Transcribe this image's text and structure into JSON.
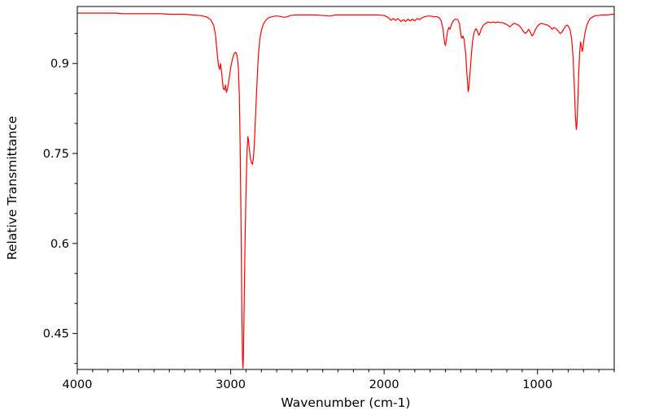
{
  "chart_data": {
    "type": "line",
    "title": "",
    "xlabel": "Wavenumber (cm-1)",
    "ylabel": "Relative Transmittance",
    "xlim": [
      4000,
      500
    ],
    "x_axis_reversed": true,
    "ylim": [
      0.39,
      0.995
    ],
    "x_ticks": [
      4000,
      3000,
      2000,
      1000
    ],
    "x_tick_labels": [
      "4000",
      "3000",
      "2000",
      "1000"
    ],
    "x_minor_tick_step": 100,
    "y_ticks": [
      0.45,
      0.6,
      0.75,
      0.9
    ],
    "y_tick_labels": [
      "0.45",
      "0.6",
      "0.75",
      "0.9"
    ],
    "y_minor_tick_step": 0.05,
    "grid": false,
    "legend": "none",
    "line_color": "#ff0000",
    "background_color": "#ffffff",
    "axis_color": "#000000",
    "series": [
      {
        "name": "IR spectrum",
        "points": [
          [
            4000,
            0.984
          ],
          [
            3950,
            0.984
          ],
          [
            3900,
            0.984
          ],
          [
            3850,
            0.984
          ],
          [
            3800,
            0.984
          ],
          [
            3750,
            0.984
          ],
          [
            3700,
            0.983
          ],
          [
            3650,
            0.983
          ],
          [
            3600,
            0.983
          ],
          [
            3550,
            0.983
          ],
          [
            3500,
            0.983
          ],
          [
            3450,
            0.983
          ],
          [
            3400,
            0.982
          ],
          [
            3350,
            0.982
          ],
          [
            3300,
            0.982
          ],
          [
            3250,
            0.981
          ],
          [
            3200,
            0.98
          ],
          [
            3160,
            0.978
          ],
          [
            3130,
            0.973
          ],
          [
            3110,
            0.963
          ],
          [
            3098,
            0.946
          ],
          [
            3088,
            0.917
          ],
          [
            3080,
            0.897
          ],
          [
            3072,
            0.89
          ],
          [
            3066,
            0.9
          ],
          [
            3058,
            0.882
          ],
          [
            3048,
            0.858
          ],
          [
            3040,
            0.856
          ],
          [
            3034,
            0.864
          ],
          [
            3028,
            0.852
          ],
          [
            3022,
            0.856
          ],
          [
            3014,
            0.868
          ],
          [
            3006,
            0.882
          ],
          [
            2998,
            0.896
          ],
          [
            2988,
            0.908
          ],
          [
            2978,
            0.916
          ],
          [
            2968,
            0.919
          ],
          [
            2958,
            0.913
          ],
          [
            2950,
            0.893
          ],
          [
            2944,
            0.85
          ],
          [
            2938,
            0.76
          ],
          [
            2932,
            0.62
          ],
          [
            2927,
            0.48
          ],
          [
            2923,
            0.41
          ],
          [
            2920,
            0.392
          ],
          [
            2917,
            0.412
          ],
          [
            2912,
            0.5
          ],
          [
            2906,
            0.61
          ],
          [
            2899,
            0.7
          ],
          [
            2893,
            0.755
          ],
          [
            2888,
            0.778
          ],
          [
            2884,
            0.772
          ],
          [
            2878,
            0.756
          ],
          [
            2871,
            0.742
          ],
          [
            2864,
            0.734
          ],
          [
            2858,
            0.732
          ],
          [
            2852,
            0.742
          ],
          [
            2846,
            0.765
          ],
          [
            2840,
            0.8
          ],
          [
            2832,
            0.848
          ],
          [
            2824,
            0.893
          ],
          [
            2816,
            0.925
          ],
          [
            2808,
            0.944
          ],
          [
            2798,
            0.957
          ],
          [
            2788,
            0.965
          ],
          [
            2775,
            0.971
          ],
          [
            2760,
            0.975
          ],
          [
            2745,
            0.977
          ],
          [
            2730,
            0.978
          ],
          [
            2710,
            0.979
          ],
          [
            2690,
            0.979
          ],
          [
            2670,
            0.978
          ],
          [
            2650,
            0.977
          ],
          [
            2630,
            0.978
          ],
          [
            2610,
            0.98
          ],
          [
            2580,
            0.981
          ],
          [
            2550,
            0.981
          ],
          [
            2500,
            0.981
          ],
          [
            2450,
            0.981
          ],
          [
            2400,
            0.98
          ],
          [
            2350,
            0.979
          ],
          [
            2320,
            0.981
          ],
          [
            2280,
            0.981
          ],
          [
            2240,
            0.981
          ],
          [
            2200,
            0.981
          ],
          [
            2160,
            0.981
          ],
          [
            2120,
            0.981
          ],
          [
            2080,
            0.981
          ],
          [
            2040,
            0.981
          ],
          [
            2000,
            0.98
          ],
          [
            1975,
            0.977
          ],
          [
            1955,
            0.972
          ],
          [
            1940,
            0.975
          ],
          [
            1925,
            0.972
          ],
          [
            1910,
            0.975
          ],
          [
            1890,
            0.97
          ],
          [
            1875,
            0.973
          ],
          [
            1860,
            0.97
          ],
          [
            1845,
            0.974
          ],
          [
            1830,
            0.971
          ],
          [
            1815,
            0.974
          ],
          [
            1800,
            0.971
          ],
          [
            1785,
            0.975
          ],
          [
            1770,
            0.973
          ],
          [
            1755,
            0.976
          ],
          [
            1735,
            0.978
          ],
          [
            1715,
            0.979
          ],
          [
            1695,
            0.979
          ],
          [
            1675,
            0.978
          ],
          [
            1655,
            0.978
          ],
          [
            1640,
            0.976
          ],
          [
            1628,
            0.971
          ],
          [
            1616,
            0.958
          ],
          [
            1606,
            0.934
          ],
          [
            1600,
            0.93
          ],
          [
            1594,
            0.94
          ],
          [
            1586,
            0.954
          ],
          [
            1578,
            0.96
          ],
          [
            1570,
            0.957
          ],
          [
            1562,
            0.964
          ],
          [
            1550,
            0.971
          ],
          [
            1535,
            0.974
          ],
          [
            1520,
            0.973
          ],
          [
            1508,
            0.966
          ],
          [
            1498,
            0.945
          ],
          [
            1492,
            0.942
          ],
          [
            1486,
            0.946
          ],
          [
            1478,
            0.94
          ],
          [
            1468,
            0.916
          ],
          [
            1459,
            0.878
          ],
          [
            1452,
            0.853
          ],
          [
            1447,
            0.86
          ],
          [
            1440,
            0.884
          ],
          [
            1432,
            0.912
          ],
          [
            1424,
            0.936
          ],
          [
            1414,
            0.951
          ],
          [
            1402,
            0.958
          ],
          [
            1392,
            0.955
          ],
          [
            1383,
            0.947
          ],
          [
            1376,
            0.95
          ],
          [
            1366,
            0.958
          ],
          [
            1352,
            0.964
          ],
          [
            1338,
            0.967
          ],
          [
            1322,
            0.969
          ],
          [
            1306,
            0.968
          ],
          [
            1290,
            0.969
          ],
          [
            1274,
            0.968
          ],
          [
            1258,
            0.969
          ],
          [
            1242,
            0.968
          ],
          [
            1226,
            0.968
          ],
          [
            1210,
            0.966
          ],
          [
            1194,
            0.964
          ],
          [
            1180,
            0.961
          ],
          [
            1168,
            0.964
          ],
          [
            1154,
            0.967
          ],
          [
            1140,
            0.966
          ],
          [
            1124,
            0.964
          ],
          [
            1108,
            0.96
          ],
          [
            1094,
            0.954
          ],
          [
            1080,
            0.95
          ],
          [
            1070,
            0.952
          ],
          [
            1058,
            0.957
          ],
          [
            1046,
            0.952
          ],
          [
            1036,
            0.946
          ],
          [
            1028,
            0.948
          ],
          [
            1016,
            0.955
          ],
          [
            1004,
            0.961
          ],
          [
            990,
            0.965
          ],
          [
            976,
            0.967
          ],
          [
            962,
            0.966
          ],
          [
            948,
            0.965
          ],
          [
            934,
            0.964
          ],
          [
            918,
            0.961
          ],
          [
            904,
            0.957
          ],
          [
            892,
            0.96
          ],
          [
            878,
            0.958
          ],
          [
            864,
            0.954
          ],
          [
            852,
            0.95
          ],
          [
            842,
            0.952
          ],
          [
            830,
            0.957
          ],
          [
            818,
            0.962
          ],
          [
            806,
            0.964
          ],
          [
            796,
            0.961
          ],
          [
            786,
            0.955
          ],
          [
            776,
            0.938
          ],
          [
            768,
            0.91
          ],
          [
            760,
            0.862
          ],
          [
            753,
            0.812
          ],
          [
            747,
            0.79
          ],
          [
            743,
            0.798
          ],
          [
            738,
            0.83
          ],
          [
            732,
            0.878
          ],
          [
            726,
            0.916
          ],
          [
            719,
            0.936
          ],
          [
            713,
            0.928
          ],
          [
            708,
            0.92
          ],
          [
            703,
            0.927
          ],
          [
            698,
            0.938
          ],
          [
            692,
            0.948
          ],
          [
            686,
            0.956
          ],
          [
            678,
            0.964
          ],
          [
            668,
            0.97
          ],
          [
            656,
            0.975
          ],
          [
            644,
            0.977
          ],
          [
            630,
            0.979
          ],
          [
            615,
            0.98
          ],
          [
            600,
            0.98
          ],
          [
            580,
            0.981
          ],
          [
            560,
            0.981
          ],
          [
            540,
            0.981
          ],
          [
            520,
            0.982
          ],
          [
            500,
            0.982
          ]
        ]
      }
    ]
  }
}
